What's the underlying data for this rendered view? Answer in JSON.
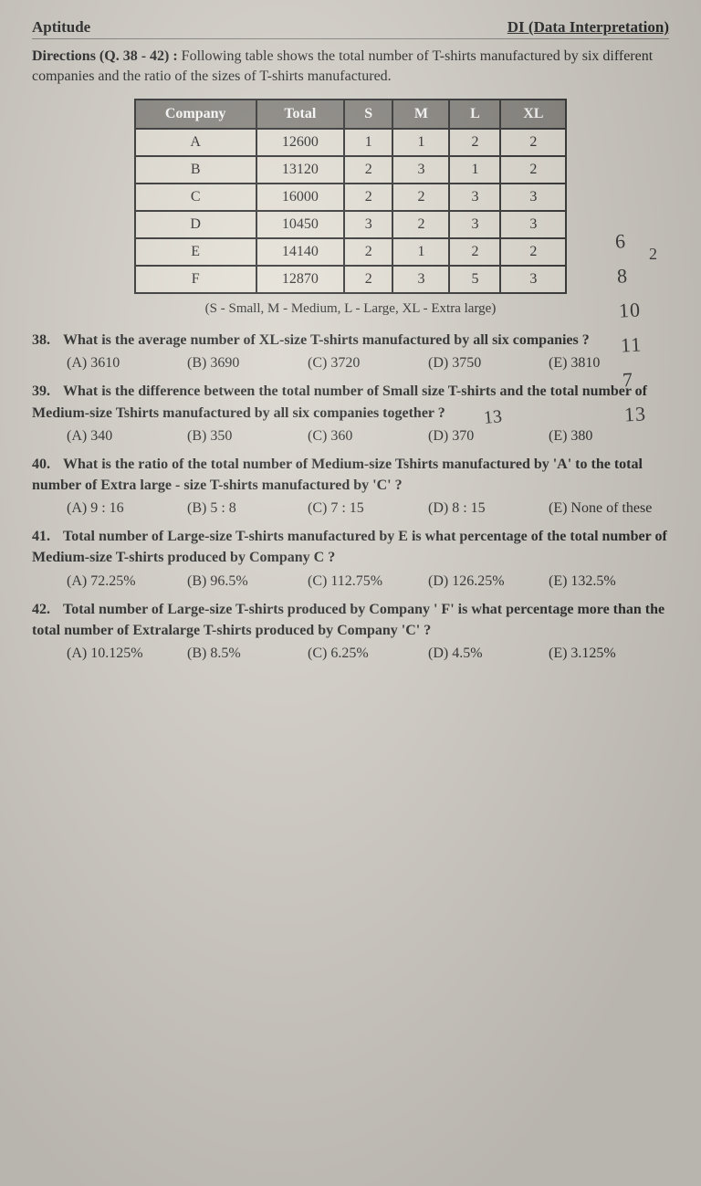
{
  "header": {
    "left": "Aptitude",
    "right": "DI (Data Interpretation)"
  },
  "directions": {
    "lead": "Directions (Q. 38 - 42) :",
    "text": "Following table shows the total number of T-shirts manufactured by six different companies and the ratio of the sizes of T-shirts manufactured."
  },
  "table": {
    "columns": [
      "Company",
      "Total",
      "S",
      "M",
      "L",
      "XL"
    ],
    "rows": [
      [
        "A",
        "12600",
        "1",
        "1",
        "2",
        "2"
      ],
      [
        "B",
        "13120",
        "2",
        "3",
        "1",
        "2"
      ],
      [
        "C",
        "16000",
        "2",
        "2",
        "3",
        "3"
      ],
      [
        "D",
        "10450",
        "3",
        "2",
        "3",
        "3"
      ],
      [
        "E",
        "14140",
        "2",
        "1",
        "2",
        "2"
      ],
      [
        "F",
        "12870",
        "2",
        "3",
        "5",
        "3"
      ]
    ],
    "header_bg": "#8a8782",
    "header_fg": "#ffffff",
    "cell_bg": "#e6e2d8",
    "border_color": "#333333",
    "caption": "(S - Small, M - Medium, L - Large, XL - Extra large)"
  },
  "questions": [
    {
      "num": "38.",
      "text": "What is the average number of XL-size T-shirts manufactured by all six companies ?",
      "options": [
        "(A) 3610",
        "(B) 3690",
        "(C) 3720",
        "(D) 3750",
        "(E) 3810"
      ]
    },
    {
      "num": "39.",
      "text": "What is the difference between the total number of Small size T-shirts and the total number of Medium-size Tshirts manufactured by all six companies together ?",
      "options": [
        "(A) 340",
        "(B) 350",
        "(C) 360",
        "(D) 370",
        "(E) 380"
      ]
    },
    {
      "num": "40.",
      "text": "What is the ratio of the total number of Medium-size Tshirts manufactured by 'A' to the total number of Extra large - size T-shirts manufactured by 'C' ?",
      "options": [
        "(A) 9 : 16",
        "(B) 5 : 8",
        "(C) 7 : 15",
        "(D) 8 : 15",
        "(E) None of these"
      ]
    },
    {
      "num": "41.",
      "text": "Total number of Large-size T-shirts manufactured by E is what percentage of the total number of Medium-size T-shirts produced by Company C ?",
      "options": [
        "(A) 72.25%",
        "(B) 96.5%",
        "(C) 112.75%",
        "(D) 126.25%",
        "(E) 132.5%"
      ]
    },
    {
      "num": "42.",
      "text": "Total number of Large-size T-shirts produced by Company ' F' is what percentage more than the total number of Extralarge T-shirts produced by Company 'C' ?",
      "options": [
        "(A) 10.125%",
        "(B) 8.5%",
        "(C) 6.25%",
        "(D) 4.5%",
        "(E) 3.125%"
      ]
    }
  ],
  "handwriting": {
    "col": [
      "6",
      "8",
      "10",
      "11",
      "7",
      "13"
    ],
    "mark1": "2",
    "mark2": "13"
  }
}
